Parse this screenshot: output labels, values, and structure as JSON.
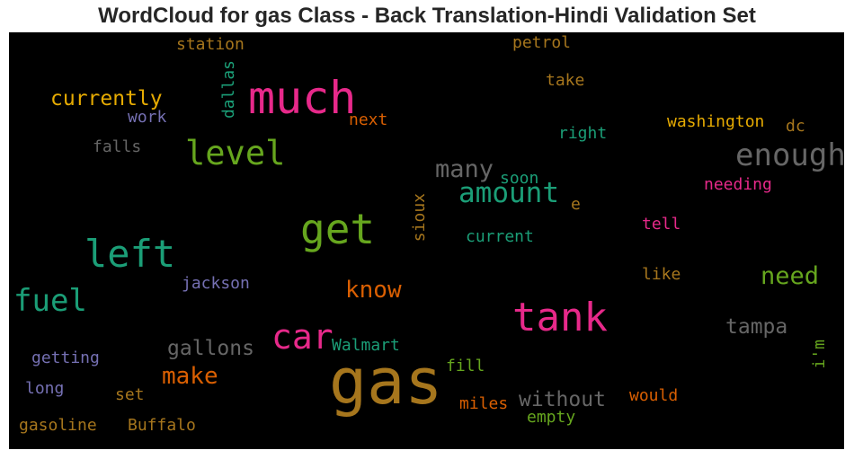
{
  "title": "WordCloud for gas Class - Back Translation-Hindi Validation Set",
  "chart_data": {
    "type": "wordcloud",
    "title": "WordCloud for gas Class - Back Translation-Hindi Validation Set",
    "background": "#000000",
    "words": [
      {
        "text": "gas",
        "weight": 1.0,
        "color": "#a6761d"
      },
      {
        "text": "much",
        "weight": 0.62,
        "color": "#e7298a"
      },
      {
        "text": "tank",
        "weight": 0.6,
        "color": "#e7298a"
      },
      {
        "text": "left",
        "weight": 0.55,
        "color": "#1b9e77"
      },
      {
        "text": "get",
        "weight": 0.52,
        "color": "#66a61e"
      },
      {
        "text": "car",
        "weight": 0.48,
        "color": "#e7298a"
      },
      {
        "text": "level",
        "weight": 0.45,
        "color": "#66a61e"
      },
      {
        "text": "fuel",
        "weight": 0.44,
        "color": "#1b9e77"
      },
      {
        "text": "enough",
        "weight": 0.42,
        "color": "#666666"
      },
      {
        "text": "amount",
        "weight": 0.38,
        "color": "#1b9e77"
      },
      {
        "text": "many",
        "weight": 0.34,
        "color": "#666666"
      },
      {
        "text": "need",
        "weight": 0.33,
        "color": "#66a61e"
      },
      {
        "text": "know",
        "weight": 0.32,
        "color": "#d95f02"
      },
      {
        "text": "make",
        "weight": 0.31,
        "color": "#d95f02"
      },
      {
        "text": "currently",
        "weight": 0.3,
        "color": "#e6ab02"
      },
      {
        "text": "without",
        "weight": 0.28,
        "color": "#666666"
      },
      {
        "text": "gallons",
        "weight": 0.28,
        "color": "#666666"
      },
      {
        "text": "tampa",
        "weight": 0.27,
        "color": "#666666"
      },
      {
        "text": "washington",
        "weight": 0.23,
        "color": "#e6ab02"
      },
      {
        "text": "needing",
        "weight": 0.22,
        "color": "#e7298a"
      },
      {
        "text": "right",
        "weight": 0.22,
        "color": "#1b9e77"
      },
      {
        "text": "soon",
        "weight": 0.21,
        "color": "#1b9e77"
      },
      {
        "text": "current",
        "weight": 0.21,
        "color": "#1b9e77"
      },
      {
        "text": "tell",
        "weight": 0.21,
        "color": "#e7298a"
      },
      {
        "text": "like",
        "weight": 0.21,
        "color": "#a6761d"
      },
      {
        "text": "jackson",
        "weight": 0.21,
        "color": "#7570b3"
      },
      {
        "text": "Walmart",
        "weight": 0.21,
        "color": "#1b9e77"
      },
      {
        "text": "fill",
        "weight": 0.21,
        "color": "#66a61e"
      },
      {
        "text": "miles",
        "weight": 0.21,
        "color": "#d95f02"
      },
      {
        "text": "would",
        "weight": 0.21,
        "color": "#d95f02"
      },
      {
        "text": "empty",
        "weight": 0.21,
        "color": "#66a61e"
      },
      {
        "text": "getting",
        "weight": 0.21,
        "color": "#7570b3"
      },
      {
        "text": "long",
        "weight": 0.21,
        "color": "#7570b3"
      },
      {
        "text": "set",
        "weight": 0.21,
        "color": "#a6761d"
      },
      {
        "text": "gasoline",
        "weight": 0.21,
        "color": "#a6761d"
      },
      {
        "text": "Buffalo",
        "weight": 0.21,
        "color": "#a6761d"
      },
      {
        "text": "station",
        "weight": 0.21,
        "color": "#a6761d"
      },
      {
        "text": "petrol",
        "weight": 0.21,
        "color": "#a6761d"
      },
      {
        "text": "take",
        "weight": 0.21,
        "color": "#a6761d"
      },
      {
        "text": "dallas",
        "weight": 0.21,
        "color": "#1b9e77"
      },
      {
        "text": "work",
        "weight": 0.21,
        "color": "#7570b3"
      },
      {
        "text": "next",
        "weight": 0.21,
        "color": "#d95f02"
      },
      {
        "text": "falls",
        "weight": 0.21,
        "color": "#666666"
      },
      {
        "text": "dc",
        "weight": 0.21,
        "color": "#a6761d"
      },
      {
        "text": "sioux",
        "weight": 0.21,
        "color": "#a6761d"
      },
      {
        "text": "e",
        "weight": 0.2,
        "color": "#a6761d"
      },
      {
        "text": "i'm",
        "weight": 0.2,
        "color": "#66a61e"
      }
    ]
  }
}
